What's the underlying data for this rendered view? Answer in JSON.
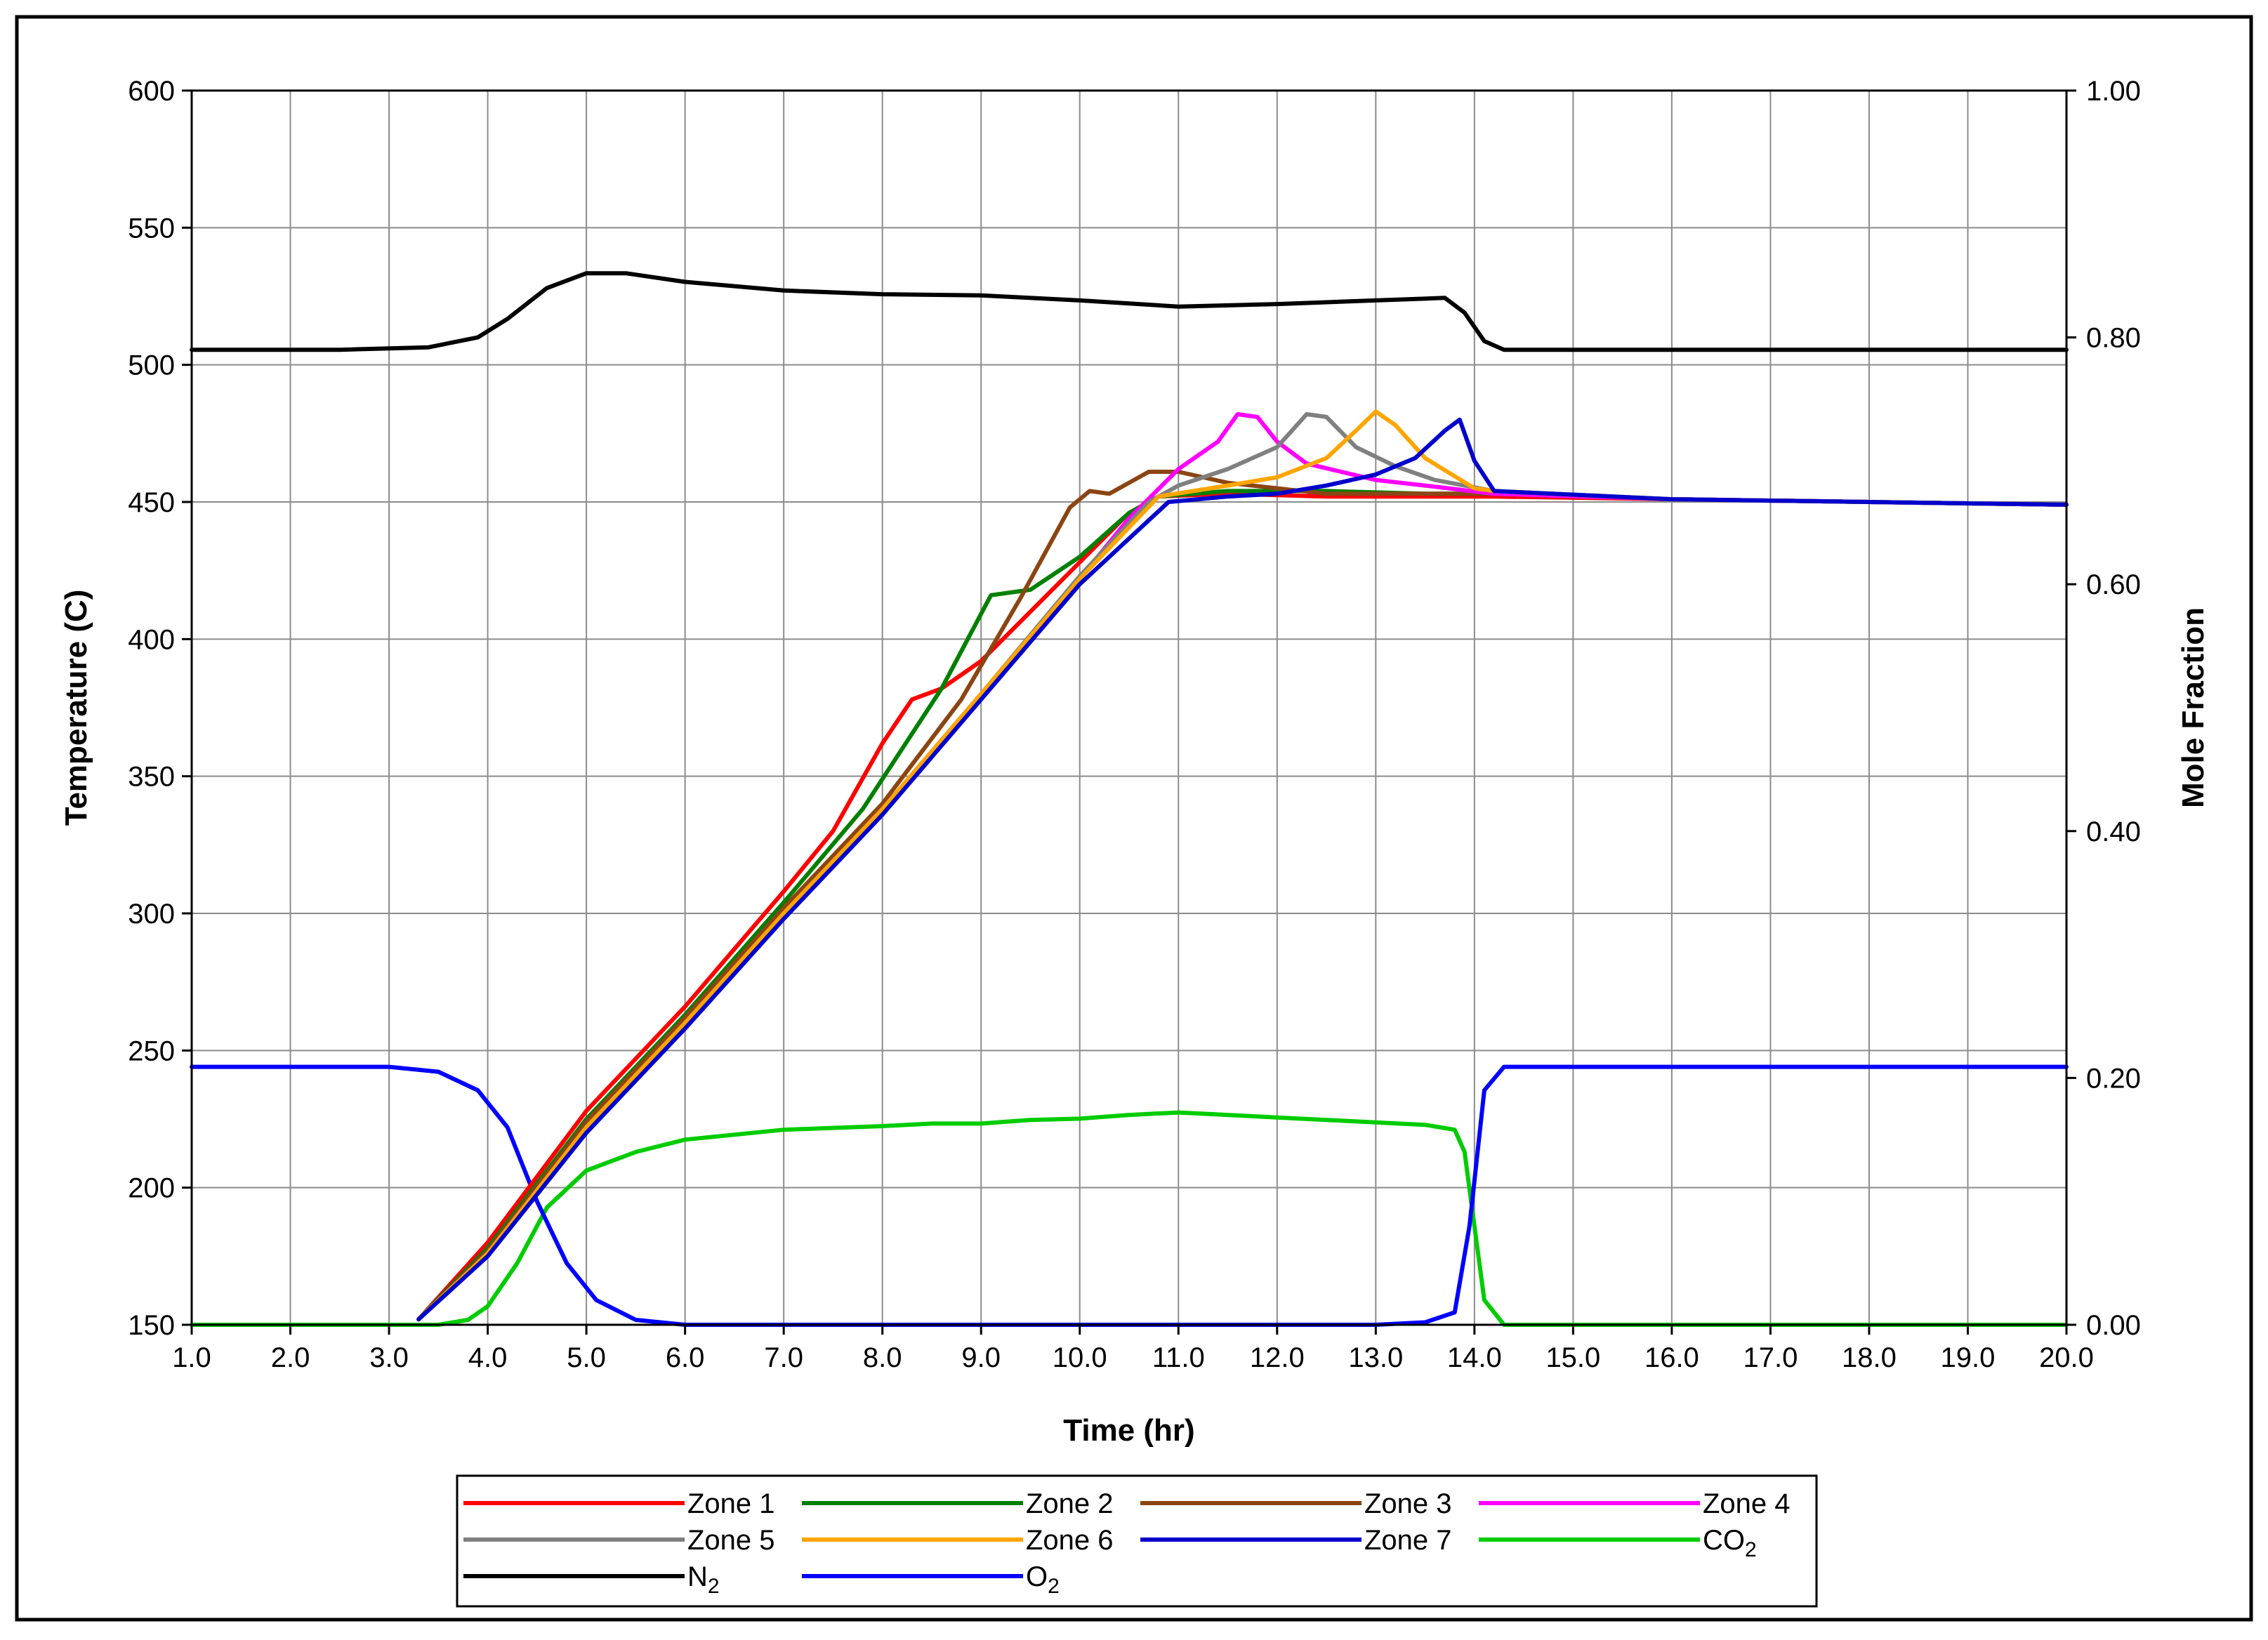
{
  "chart_data": {
    "type": "line",
    "title": "",
    "xlabel": "Time (hr)",
    "ylabel_left": "Temperature (C)",
    "ylabel_right": "Mole Fraction",
    "xlim": [
      1.0,
      20.0
    ],
    "ylim_left": [
      150,
      600
    ],
    "ylim_right": [
      0.0,
      1.0
    ],
    "grid": true,
    "legend_placement": "bottom",
    "x_ticks": [
      "1.0",
      "2.0",
      "3.0",
      "4.0",
      "5.0",
      "6.0",
      "7.0",
      "8.0",
      "9.0",
      "10.0",
      "11.0",
      "12.0",
      "13.0",
      "14.0",
      "15.0",
      "16.0",
      "17.0",
      "18.0",
      "19.0",
      "20.0"
    ],
    "y_left_ticks": [
      "150",
      "200",
      "250",
      "300",
      "350",
      "400",
      "450",
      "500",
      "550",
      "600"
    ],
    "y_right_ticks": [
      "0.00",
      "0.20",
      "0.40",
      "0.60",
      "0.80",
      "1.00"
    ],
    "series": [
      {
        "name": "Zone 1",
        "axis": "left",
        "color": "#ff0000",
        "points": [
          [
            3.3,
            152
          ],
          [
            4.0,
            180
          ],
          [
            5.0,
            228
          ],
          [
            6.0,
            266
          ],
          [
            7.0,
            308
          ],
          [
            7.5,
            330
          ],
          [
            8.0,
            362
          ],
          [
            8.3,
            378
          ],
          [
            8.6,
            382
          ],
          [
            9.0,
            392
          ],
          [
            9.5,
            410
          ],
          [
            10.0,
            428
          ],
          [
            10.5,
            446
          ],
          [
            10.8,
            452
          ],
          [
            11.5,
            453
          ],
          [
            12.5,
            452
          ],
          [
            13.5,
            452
          ],
          [
            14.2,
            452
          ],
          [
            16.0,
            451
          ],
          [
            18.0,
            450
          ],
          [
            20.0,
            449
          ]
        ]
      },
      {
        "name": "Zone 2",
        "axis": "left",
        "color": "#008000",
        "points": [
          [
            3.3,
            152
          ],
          [
            4.0,
            178
          ],
          [
            5.0,
            225
          ],
          [
            6.0,
            263
          ],
          [
            7.0,
            304
          ],
          [
            7.8,
            338
          ],
          [
            8.6,
            382
          ],
          [
            9.1,
            416
          ],
          [
            9.5,
            418
          ],
          [
            10.0,
            430
          ],
          [
            10.5,
            446
          ],
          [
            10.8,
            452
          ],
          [
            11.5,
            454
          ],
          [
            12.5,
            454
          ],
          [
            13.5,
            453
          ],
          [
            14.2,
            453
          ],
          [
            16.0,
            451
          ],
          [
            18.0,
            450
          ],
          [
            20.0,
            449
          ]
        ]
      },
      {
        "name": "Zone 3",
        "axis": "left",
        "color": "#8b4513",
        "points": [
          [
            3.3,
            152
          ],
          [
            4.0,
            177
          ],
          [
            5.0,
            224
          ],
          [
            6.0,
            262
          ],
          [
            7.0,
            302
          ],
          [
            8.0,
            340
          ],
          [
            8.8,
            378
          ],
          [
            9.4,
            415
          ],
          [
            9.9,
            448
          ],
          [
            10.1,
            454
          ],
          [
            10.3,
            453
          ],
          [
            10.7,
            461
          ],
          [
            11.0,
            461
          ],
          [
            11.5,
            457
          ],
          [
            12.5,
            453
          ],
          [
            13.5,
            453
          ],
          [
            14.2,
            453
          ],
          [
            16.0,
            451
          ],
          [
            18.0,
            450
          ],
          [
            20.0,
            449
          ]
        ]
      },
      {
        "name": "Zone 4",
        "axis": "left",
        "color": "#ff00ff",
        "points": [
          [
            3.3,
            152
          ],
          [
            4.0,
            176
          ],
          [
            5.0,
            222
          ],
          [
            6.0,
            260
          ],
          [
            7.0,
            300
          ],
          [
            8.0,
            338
          ],
          [
            9.0,
            380
          ],
          [
            10.0,
            422
          ],
          [
            10.5,
            444
          ],
          [
            11.0,
            462
          ],
          [
            11.4,
            472
          ],
          [
            11.6,
            482
          ],
          [
            11.8,
            481
          ],
          [
            12.0,
            472
          ],
          [
            12.3,
            464
          ],
          [
            13.0,
            458
          ],
          [
            13.5,
            456
          ],
          [
            14.2,
            453
          ],
          [
            16.0,
            451
          ],
          [
            18.0,
            450
          ],
          [
            20.0,
            449
          ]
        ]
      },
      {
        "name": "Zone 5",
        "axis": "left",
        "color": "#808080",
        "points": [
          [
            3.3,
            152
          ],
          [
            4.0,
            176
          ],
          [
            5.0,
            222
          ],
          [
            6.0,
            260
          ],
          [
            7.0,
            300
          ],
          [
            8.0,
            338
          ],
          [
            9.0,
            380
          ],
          [
            10.0,
            423
          ],
          [
            10.7,
            450
          ],
          [
            11.0,
            456
          ],
          [
            11.5,
            462
          ],
          [
            12.0,
            470
          ],
          [
            12.3,
            482
          ],
          [
            12.5,
            481
          ],
          [
            12.8,
            470
          ],
          [
            13.2,
            463
          ],
          [
            13.6,
            458
          ],
          [
            14.2,
            454
          ],
          [
            16.0,
            451
          ],
          [
            18.0,
            450
          ],
          [
            20.0,
            449
          ]
        ]
      },
      {
        "name": "Zone 6",
        "axis": "left",
        "color": "#ffa500",
        "points": [
          [
            3.3,
            152
          ],
          [
            4.0,
            176
          ],
          [
            5.0,
            222
          ],
          [
            6.0,
            260
          ],
          [
            7.0,
            300
          ],
          [
            8.0,
            338
          ],
          [
            9.0,
            380
          ],
          [
            10.0,
            422
          ],
          [
            10.8,
            452
          ],
          [
            11.5,
            456
          ],
          [
            12.0,
            459
          ],
          [
            12.5,
            466
          ],
          [
            12.8,
            476
          ],
          [
            13.0,
            483
          ],
          [
            13.2,
            478
          ],
          [
            13.5,
            466
          ],
          [
            14.0,
            455
          ],
          [
            14.2,
            454
          ],
          [
            16.0,
            451
          ],
          [
            18.0,
            450
          ],
          [
            20.0,
            449
          ]
        ]
      },
      {
        "name": "Zone 7",
        "axis": "left",
        "color": "#0000cc",
        "points": [
          [
            3.3,
            152
          ],
          [
            4.0,
            175
          ],
          [
            5.0,
            220
          ],
          [
            6.0,
            258
          ],
          [
            7.0,
            298
          ],
          [
            8.0,
            336
          ],
          [
            9.0,
            378
          ],
          [
            10.0,
            420
          ],
          [
            10.9,
            450
          ],
          [
            11.5,
            452
          ],
          [
            12.0,
            453
          ],
          [
            12.5,
            456
          ],
          [
            13.0,
            460
          ],
          [
            13.4,
            466
          ],
          [
            13.7,
            476
          ],
          [
            13.85,
            480
          ],
          [
            14.0,
            465
          ],
          [
            14.2,
            454
          ],
          [
            16.0,
            451
          ],
          [
            18.0,
            450
          ],
          [
            20.0,
            449
          ]
        ]
      },
      {
        "name": "CO2",
        "axis": "right",
        "color": "#00cc00",
        "points": [
          [
            1.0,
            0.0
          ],
          [
            3.5,
            0.0
          ],
          [
            3.8,
            0.004
          ],
          [
            4.0,
            0.015
          ],
          [
            4.3,
            0.05
          ],
          [
            4.6,
            0.095
          ],
          [
            5.0,
            0.125
          ],
          [
            5.5,
            0.14
          ],
          [
            6.0,
            0.15
          ],
          [
            7.0,
            0.158
          ],
          [
            8.0,
            0.161
          ],
          [
            8.5,
            0.163
          ],
          [
            9.0,
            0.163
          ],
          [
            9.5,
            0.166
          ],
          [
            10.0,
            0.167
          ],
          [
            10.5,
            0.17
          ],
          [
            11.0,
            0.172
          ],
          [
            11.5,
            0.17
          ],
          [
            12.0,
            0.168
          ],
          [
            12.5,
            0.166
          ],
          [
            13.0,
            0.164
          ],
          [
            13.5,
            0.162
          ],
          [
            13.8,
            0.158
          ],
          [
            13.9,
            0.14
          ],
          [
            14.0,
            0.08
          ],
          [
            14.1,
            0.02
          ],
          [
            14.3,
            0.0
          ],
          [
            20.0,
            0.0
          ]
        ]
      },
      {
        "name": "N2",
        "axis": "right",
        "color": "#000000",
        "points": [
          [
            1.0,
            0.79
          ],
          [
            2.5,
            0.79
          ],
          [
            3.4,
            0.792
          ],
          [
            3.9,
            0.8
          ],
          [
            4.2,
            0.815
          ],
          [
            4.6,
            0.84
          ],
          [
            5.0,
            0.852
          ],
          [
            5.4,
            0.852
          ],
          [
            6.0,
            0.845
          ],
          [
            7.0,
            0.838
          ],
          [
            8.0,
            0.835
          ],
          [
            9.0,
            0.834
          ],
          [
            10.0,
            0.83
          ],
          [
            11.0,
            0.825
          ],
          [
            12.0,
            0.827
          ],
          [
            13.0,
            0.83
          ],
          [
            13.7,
            0.832
          ],
          [
            13.9,
            0.82
          ],
          [
            14.1,
            0.797
          ],
          [
            14.3,
            0.79
          ],
          [
            20.0,
            0.79
          ]
        ]
      },
      {
        "name": "O2",
        "axis": "right",
        "color": "#0000ff",
        "points": [
          [
            1.0,
            0.209
          ],
          [
            3.0,
            0.209
          ],
          [
            3.5,
            0.205
          ],
          [
            3.9,
            0.19
          ],
          [
            4.2,
            0.16
          ],
          [
            4.5,
            0.1
          ],
          [
            4.8,
            0.05
          ],
          [
            5.1,
            0.02
          ],
          [
            5.5,
            0.004
          ],
          [
            6.0,
            0.0
          ],
          [
            13.0,
            0.0
          ],
          [
            13.5,
            0.002
          ],
          [
            13.8,
            0.01
          ],
          [
            13.95,
            0.08
          ],
          [
            14.1,
            0.19
          ],
          [
            14.3,
            0.209
          ],
          [
            20.0,
            0.209
          ]
        ]
      }
    ],
    "legend": [
      {
        "label": "Zone 1",
        "sub": "",
        "color": "#ff0000"
      },
      {
        "label": "Zone 2",
        "sub": "",
        "color": "#008000"
      },
      {
        "label": "Zone 3",
        "sub": "",
        "color": "#8b4513"
      },
      {
        "label": "Zone 4",
        "sub": "",
        "color": "#ff00ff"
      },
      {
        "label": "Zone 5",
        "sub": "",
        "color": "#808080"
      },
      {
        "label": "Zone 6",
        "sub": "",
        "color": "#ffa500"
      },
      {
        "label": "Zone 7",
        "sub": "",
        "color": "#0000cc"
      },
      {
        "label": "CO",
        "sub": "2",
        "color": "#00cc00"
      },
      {
        "label": "N",
        "sub": "2",
        "color": "#000000"
      },
      {
        "label": "O",
        "sub": "2",
        "color": "#0000ff"
      }
    ]
  }
}
